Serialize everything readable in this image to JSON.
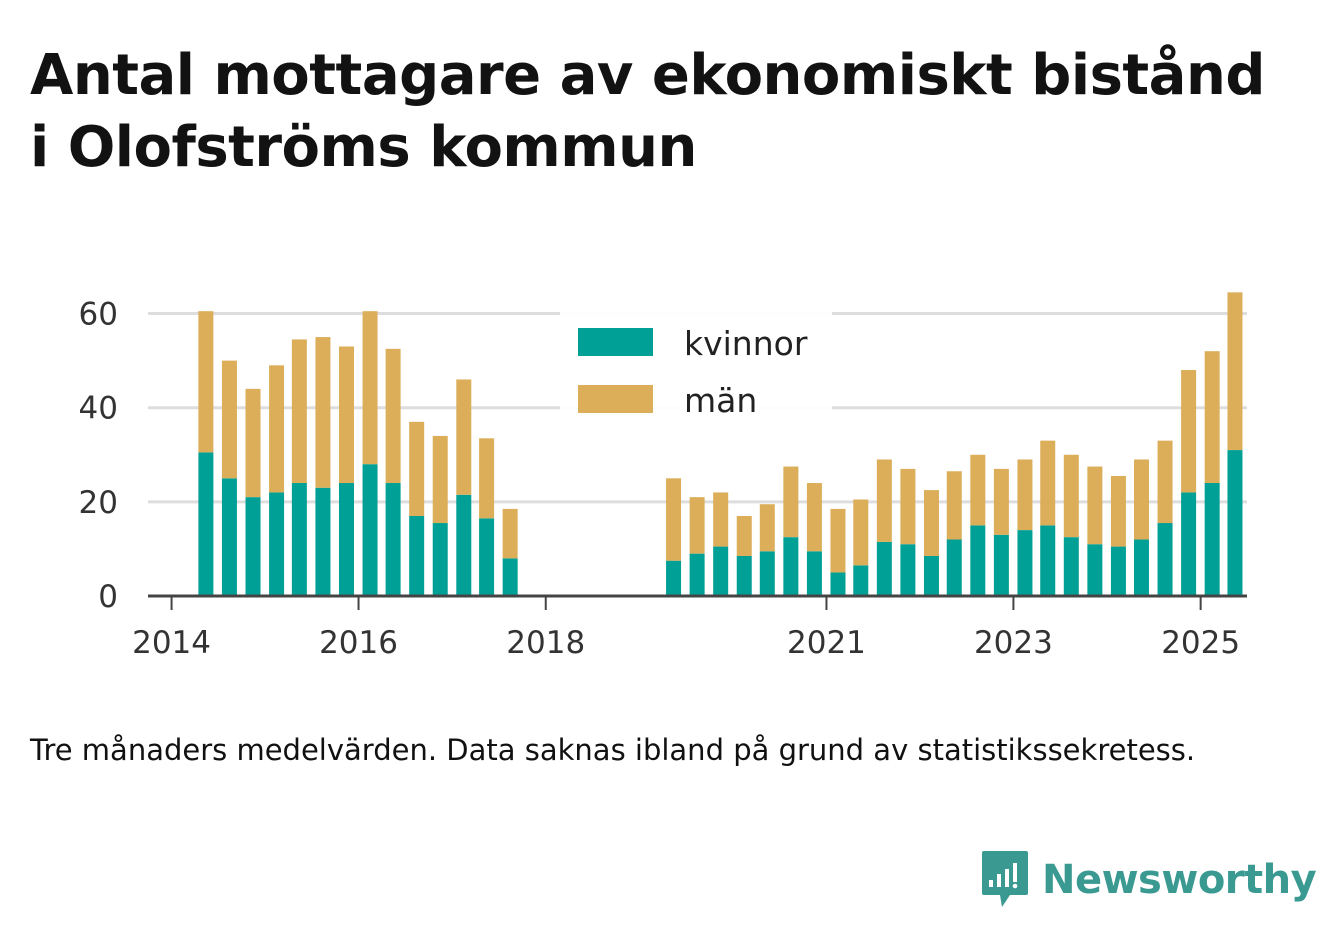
{
  "title": "Antal mottagare av ekonomiskt bistånd i Olofströms kommun",
  "note": "Tre månaders medelvärden. Data saknas ibland på grund av statistikssekretess.",
  "brand": {
    "name": "Newsworthy",
    "icon": "newsworthy-logo-icon",
    "color": "#3a9a92"
  },
  "colors": {
    "kvinnor": "#00a096",
    "man": "#dcae5a",
    "grid": "#dddddd",
    "axis": "#444444",
    "text": "#333333"
  },
  "chart_data": {
    "type": "bar",
    "stacked": true,
    "ylim": [
      0,
      65
    ],
    "yticks": [
      0,
      20,
      40,
      60
    ],
    "xlim": [
      "2013-10-01",
      "2025-07-01"
    ],
    "xticks": [
      {
        "label": "2014",
        "date": "2014-01-01"
      },
      {
        "label": "2016",
        "date": "2016-01-01"
      },
      {
        "label": "2018",
        "date": "2018-01-01"
      },
      {
        "label": "2021",
        "date": "2021-01-01"
      },
      {
        "label": "2023",
        "date": "2023-01-01"
      },
      {
        "label": "2025",
        "date": "2025-01-01"
      }
    ],
    "grid": true,
    "legend_position": "top-center",
    "x": [
      "2014-05",
      "2014-08",
      "2014-11",
      "2015-02",
      "2015-05",
      "2015-08",
      "2015-11",
      "2016-02",
      "2016-05",
      "2016-08",
      "2016-11",
      "2017-02",
      "2017-05",
      "2017-08",
      "2019-05",
      "2019-08",
      "2019-11",
      "2020-02",
      "2020-05",
      "2020-08",
      "2020-11",
      "2021-02",
      "2021-05",
      "2021-08",
      "2021-11",
      "2022-02",
      "2022-05",
      "2022-08",
      "2022-11",
      "2023-02",
      "2023-05",
      "2023-08",
      "2023-11",
      "2024-02",
      "2024-05",
      "2024-08",
      "2024-11",
      "2025-02",
      "2025-05"
    ],
    "series": [
      {
        "name": "kvinnor",
        "values": [
          30.5,
          25,
          21,
          22,
          24,
          23,
          24,
          28,
          24,
          17,
          15.5,
          21.5,
          16.5,
          8,
          7.5,
          9,
          10.5,
          8.5,
          9.5,
          12.5,
          9.5,
          5,
          6.5,
          11.5,
          11,
          8.5,
          12,
          15,
          13,
          14,
          15,
          12.5,
          11,
          10.5,
          12,
          15.5,
          22,
          24,
          31
        ]
      },
      {
        "name": "män",
        "values": [
          30,
          25,
          23,
          27,
          30.5,
          32,
          29,
          32.5,
          28.5,
          20,
          18.5,
          24.5,
          17,
          10.5,
          17.5,
          12,
          11.5,
          8.5,
          10,
          15,
          14.5,
          13.5,
          14,
          17.5,
          16,
          14,
          14.5,
          15,
          14,
          15,
          18,
          17.5,
          16.5,
          15,
          17,
          17.5,
          26,
          28,
          33.5
        ]
      }
    ]
  }
}
